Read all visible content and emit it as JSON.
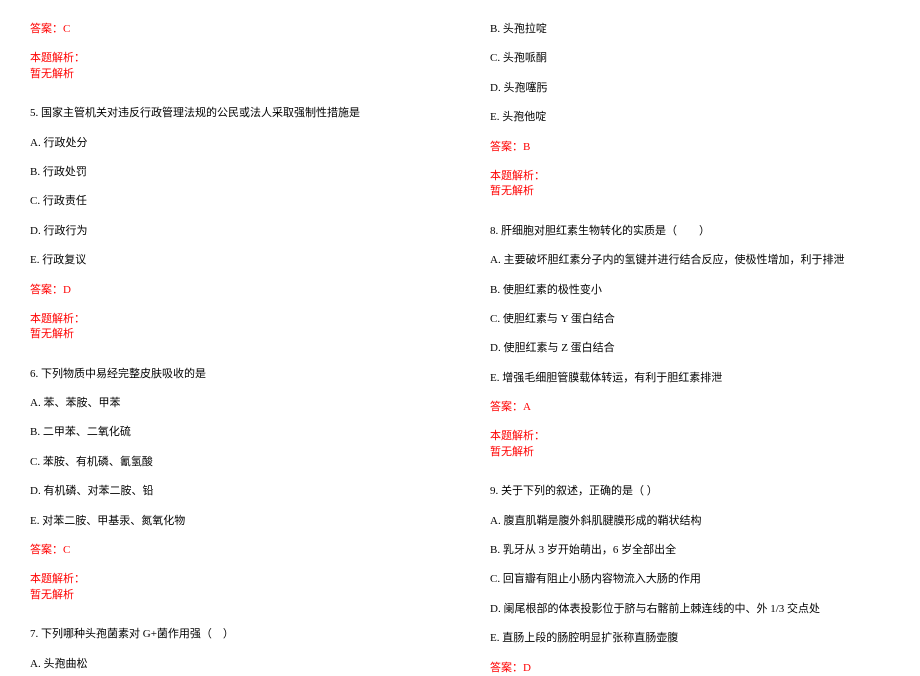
{
  "text_color": "#000000",
  "answer_color": "#ff0000",
  "background_color": "#ffffff",
  "font_size": 11,
  "left_column": {
    "answer4": "答案：C",
    "analysis_label": "本题解析：",
    "no_analysis": "暂无解析",
    "q5": {
      "stem": "5. 国家主管机关对违反行政管理法规的公民或法人采取强制性措施是",
      "a": "A. 行政处分",
      "b": "B. 行政处罚",
      "c": "C. 行政责任",
      "d": "D. 行政行为",
      "e": "E. 行政复议",
      "answer": "答案：D"
    },
    "q6": {
      "stem": "6. 下列物质中易经完整皮肤吸收的是",
      "a": "A. 苯、苯胺、甲苯",
      "b": "B. 二甲苯、二氧化硫",
      "c": "C. 苯胺、有机磷、氰氢酸",
      "d": "D. 有机磷、对苯二胺、铅",
      "e": "E. 对苯二胺、甲基汞、氮氧化物",
      "answer": "答案：C"
    },
    "q7": {
      "stem": "7. 下列哪种头孢菌素对 G+菌作用强（　）",
      "a": "A. 头孢曲松"
    }
  },
  "right_column": {
    "q7cont": {
      "b": "B. 头孢拉啶",
      "c": "C. 头孢哌酮",
      "d": "D. 头孢噻肟",
      "e": "E. 头孢他啶",
      "answer": "答案：B"
    },
    "analysis_label": "本题解析：",
    "no_analysis": "暂无解析",
    "q8": {
      "stem": "8. 肝细胞对胆红素生物转化的实质是（　　）",
      "a": "A. 主要破坏胆红素分子内的氢键并进行结合反应，使极性增加，利于排泄",
      "b": "B. 使胆红素的极性变小",
      "c": "C. 使胆红素与 Y 蛋白结合",
      "d": "D. 使胆红素与 Z 蛋白结合",
      "e": "E. 增强毛细胆管膜载体转运，有利于胆红素排泄",
      "answer": "答案：A"
    },
    "q9": {
      "stem": "9. 关于下列的叙述，正确的是（ ）",
      "a": "A. 腹直肌鞘是腹外斜肌腱膜形成的鞘状结构",
      "b": "B. 乳牙从 3 岁开始萌出，6 岁全部出全",
      "c": "C. 回盲瓣有阻止小肠内容物流入大肠的作用",
      "d": "D. 阑尾根部的体表投影位于脐与右髂前上棘连线的中、外 1/3 交点处",
      "e": "E. 直肠上段的肠腔明显扩张称直肠壶腹",
      "answer": "答案：D"
    }
  }
}
